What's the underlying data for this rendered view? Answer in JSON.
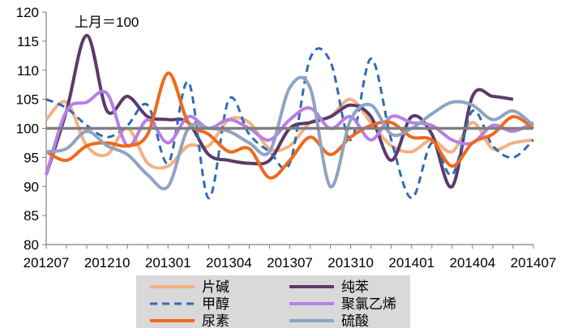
{
  "chart_data": {
    "type": "line",
    "annotation": "上月＝100",
    "ylim": [
      80,
      120
    ],
    "yticks": [
      80,
      85,
      90,
      95,
      100,
      105,
      110,
      115,
      120
    ],
    "x": [
      "201207",
      "201208",
      "201209",
      "201210",
      "201211",
      "201212",
      "201301",
      "201302",
      "201303",
      "201304",
      "201305",
      "201306",
      "201307",
      "201308",
      "201309",
      "201310",
      "201311",
      "201312",
      "201401",
      "201402",
      "201403",
      "201404",
      "201405",
      "201406",
      "201407"
    ],
    "xtick_labels": [
      "201207",
      "201210",
      "201301",
      "201304",
      "201307",
      "201310",
      "201401",
      "201404",
      "201407"
    ],
    "reference_line": 100,
    "grid": false,
    "legend_position": "bottom",
    "series": [
      {
        "name": "片碱",
        "color": "#F4B183",
        "dash": "solid",
        "values": [
          101.5,
          104.5,
          97,
          95.5,
          100,
          94,
          93.5,
          97,
          97,
          101.5,
          101,
          96.5,
          97,
          101,
          102,
          105,
          101,
          97,
          96,
          98,
          96,
          101,
          96.5,
          97.5,
          98
        ]
      },
      {
        "name": "纯苯",
        "color": "#5B3A6B",
        "dash": "solid",
        "values": [
          92,
          103,
          116,
          103,
          105.5,
          102,
          101.5,
          101,
          95.5,
          94.5,
          94,
          94.5,
          100,
          101,
          102,
          104,
          102,
          94.5,
          102,
          99,
          90,
          105.5,
          105.5,
          105,
          null
        ]
      },
      {
        "name": "甲醇",
        "color": "#2F6CB3",
        "dash": "dashed",
        "values": [
          105,
          103.5,
          100.5,
          98.5,
          100.5,
          104,
          94,
          108,
          88,
          105,
          99,
          96,
          94,
          112,
          111.5,
          98,
          112,
          98,
          88,
          97.5,
          92,
          103,
          97,
          95,
          98
        ]
      },
      {
        "name": "聚氯乙烯",
        "color": "#B77FE6",
        "dash": "solid",
        "values": [
          92,
          103,
          104.5,
          106,
          97,
          101.5,
          97.5,
          102,
          100,
          101.5,
          100,
          98,
          101.5,
          103.5,
          100,
          102,
          98,
          102,
          101,
          100.5,
          98,
          97.5,
          100.5,
          99.5,
          101
        ]
      },
      {
        "name": "尿素",
        "color": "#EE6A1C",
        "dash": "solid",
        "values": [
          96,
          94.5,
          97,
          97.5,
          97,
          99,
          109.5,
          101,
          99,
          96,
          96.5,
          91.5,
          94.5,
          98.5,
          95.5,
          98.5,
          100.5,
          101,
          98.5,
          98,
          93.5,
          97.5,
          99,
          102,
          100
        ]
      },
      {
        "name": "硫酸",
        "color": "#8EA4C4",
        "dash": "solid",
        "values": [
          96,
          96.5,
          99.5,
          97,
          95.5,
          92,
          90,
          100,
          100,
          99.5,
          97.5,
          96,
          107,
          107,
          90,
          101.5,
          104,
          99,
          100,
          102.5,
          104.5,
          104,
          101.5,
          103,
          100.5
        ]
      }
    ]
  }
}
